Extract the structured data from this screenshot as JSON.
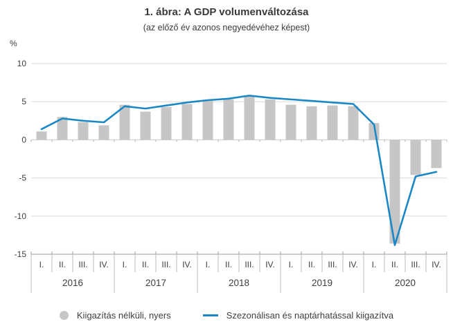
{
  "title": "1. ábra: A GDP volumenváltozása",
  "subtitle": "(az előző év azonos negyedévéhez képest)",
  "y_axis_unit": "%",
  "legend": {
    "raw_label": "Kiigazítás nélküli, nyers",
    "adjusted_label": "Szezonálisan és naptárhatással kiigazítva"
  },
  "colors": {
    "bar": "#c6c6c6",
    "line": "#1b87c6",
    "grid": "#d9d9d9",
    "zero_line": "#c8c8c8",
    "axis": "#9e9e9e",
    "separator": "#bdbdbd",
    "text": "#3d3d3d"
  },
  "chart_data": {
    "type": "bar",
    "title": "1. ábra: A GDP volumenváltozása",
    "subtitle": "(az előző év azonos negyedévéhez képest)",
    "ylabel": "%",
    "ylim": [
      -15,
      10
    ],
    "yticks": [
      10,
      5,
      0,
      -5,
      -10,
      -15
    ],
    "grid": true,
    "legend_position": "bottom",
    "years": [
      "2016",
      "2017",
      "2018",
      "2019",
      "2020"
    ],
    "quarter_labels": [
      "I.",
      "II.",
      "III.",
      "IV."
    ],
    "categories": [
      "2016 I.",
      "2016 II.",
      "2016 III.",
      "2016 IV.",
      "2017 I.",
      "2017 II.",
      "2017 III.",
      "2017 IV.",
      "2018 I.",
      "2018 II.",
      "2018 III.",
      "2018 IV.",
      "2019 I.",
      "2019 II.",
      "2019 III.",
      "2019 IV.",
      "2020 I.",
      "2020 II.",
      "2020 III.",
      "2020 IV."
    ],
    "series": [
      {
        "name": "Kiigazítás nélküli, nyers",
        "type": "bar",
        "color": "#c6c6c6",
        "values": [
          1.1,
          3.0,
          2.3,
          1.9,
          4.6,
          3.7,
          4.3,
          4.7,
          5.1,
          5.3,
          5.7,
          5.3,
          4.6,
          4.4,
          4.5,
          4.4,
          2.2,
          -13.6,
          -4.6,
          -3.7
        ]
      },
      {
        "name": "Szezonálisan és naptárhatással kiigazítva",
        "type": "line",
        "color": "#1b87c6",
        "values": [
          1.4,
          2.8,
          2.5,
          2.3,
          4.4,
          4.1,
          4.5,
          4.9,
          5.2,
          5.4,
          5.8,
          5.5,
          5.3,
          5.1,
          4.9,
          4.7,
          2.0,
          -13.8,
          -4.8,
          -4.2
        ]
      }
    ]
  }
}
